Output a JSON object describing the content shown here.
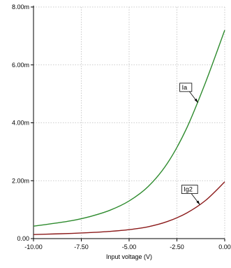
{
  "chart_data": {
    "type": "line",
    "title": "",
    "xlabel": "Input voltage (V)",
    "ylabel": "",
    "xlim": [
      -10,
      0
    ],
    "ylim": [
      0,
      0.008
    ],
    "grid": true,
    "x_ticks": [
      -10,
      -7.5,
      -5,
      -2.5,
      0
    ],
    "x_tick_labels": [
      "-10.00",
      "-7.50",
      "-5.00",
      "-2.50",
      "0.00"
    ],
    "y_ticks": [
      0,
      0.002,
      0.004,
      0.006,
      0.008
    ],
    "y_tick_labels": [
      "0.00",
      "2.00m",
      "4.00m",
      "6.00m",
      "8.00m"
    ],
    "x": [
      -10,
      -9,
      -8,
      -7,
      -6,
      -5,
      -4,
      -3,
      -2,
      -1,
      0
    ],
    "series": [
      {
        "name": "Ia",
        "color": "#2e8b2e",
        "label_at_x": -1.4,
        "values": [
          0.00043,
          0.00052,
          0.00062,
          0.00077,
          0.00098,
          0.0013,
          0.0018,
          0.0026,
          0.0038,
          0.0054,
          0.0072
        ]
      },
      {
        "name": "Ig2",
        "color": "#8b1a1a",
        "label_at_x": -1.3,
        "values": [
          0.00014,
          0.00016,
          0.00018,
          0.00021,
          0.00025,
          0.00031,
          0.00041,
          0.00059,
          0.00088,
          0.00132,
          0.00196
        ]
      }
    ]
  }
}
